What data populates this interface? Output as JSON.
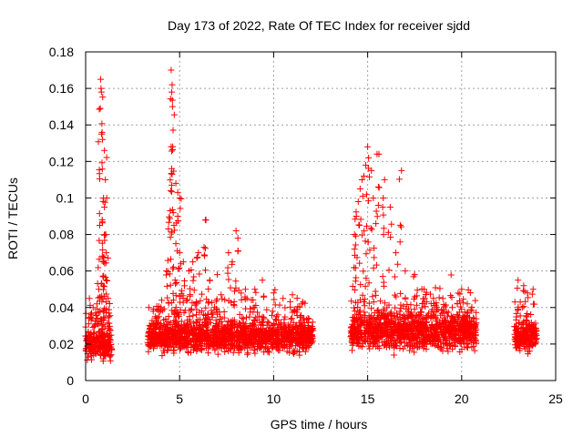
{
  "chart_data": {
    "type": "scatter",
    "title": "Day 173 of 2022, Rate Of TEC Index for receiver sjdd",
    "xlabel": "GPS time / hours",
    "ylabel": "ROTI / TECUs",
    "xlim": [
      0,
      25
    ],
    "ylim": [
      0,
      0.18
    ],
    "xticks": [
      0,
      5,
      10,
      15,
      20,
      25
    ],
    "yticks": [
      0,
      0.02,
      0.04,
      0.06,
      0.08,
      0.1,
      0.12,
      0.14,
      0.16,
      0.18
    ],
    "xtick_labels": [
      "0",
      "5",
      "10",
      "15",
      "20",
      "25"
    ],
    "ytick_labels": [
      "0",
      "0.02",
      "0.04",
      "0.06",
      "0.08",
      "0.1",
      "0.12",
      "0.14",
      "0.16",
      "0.18"
    ],
    "grid": true,
    "marker": "+",
    "color": "#ff0000",
    "series": [
      {
        "name": "ROTI",
        "segments": [
          {
            "x_range": [
              0.0,
              1.4
            ],
            "baseline": 0.02,
            "spread": 0.012
          },
          {
            "x_range": [
              3.3,
              12.1
            ],
            "baseline": 0.024,
            "spread": 0.012
          },
          {
            "x_range": [
              14.1,
              20.8
            ],
            "baseline": 0.027,
            "spread": 0.014
          },
          {
            "x_range": [
              22.8,
              24.0
            ],
            "baseline": 0.024,
            "spread": 0.011
          }
        ],
        "points": [
          [
            0.2,
            0.045
          ],
          [
            0.4,
            0.04
          ],
          [
            0.6,
            0.042
          ],
          [
            0.7,
            0.05
          ],
          [
            0.75,
            0.085
          ],
          [
            0.8,
            0.165
          ],
          [
            0.82,
            0.16
          ],
          [
            0.84,
            0.158
          ],
          [
            0.78,
            0.149
          ],
          [
            0.85,
            0.135
          ],
          [
            0.9,
            0.132
          ],
          [
            1.0,
            0.126
          ],
          [
            1.05,
            0.11
          ],
          [
            0.95,
            0.1
          ],
          [
            1.0,
            0.095
          ],
          [
            0.88,
            0.088
          ],
          [
            1.02,
            0.08
          ],
          [
            1.1,
            0.07
          ],
          [
            0.95,
            0.065
          ],
          [
            1.1,
            0.055
          ],
          [
            1.2,
            0.045
          ],
          [
            3.7,
            0.035
          ],
          [
            4.0,
            0.04
          ],
          [
            4.3,
            0.06
          ],
          [
            4.4,
            0.083
          ],
          [
            4.5,
            0.093
          ],
          [
            4.55,
            0.17
          ],
          [
            4.6,
            0.162
          ],
          [
            4.58,
            0.158
          ],
          [
            4.62,
            0.15
          ],
          [
            4.55,
            0.128
          ],
          [
            4.6,
            0.113
          ],
          [
            4.8,
            0.108
          ],
          [
            4.9,
            0.103
          ],
          [
            5.0,
            0.1
          ],
          [
            4.9,
            0.09
          ],
          [
            4.7,
            0.085
          ],
          [
            4.8,
            0.075
          ],
          [
            5.0,
            0.07
          ],
          [
            5.2,
            0.065
          ],
          [
            5.5,
            0.06
          ],
          [
            5.7,
            0.065
          ],
          [
            6.0,
            0.07
          ],
          [
            6.3,
            0.073
          ],
          [
            6.4,
            0.088
          ],
          [
            6.6,
            0.055
          ],
          [
            7.0,
            0.058
          ],
          [
            7.6,
            0.07
          ],
          [
            7.8,
            0.065
          ],
          [
            8.0,
            0.082
          ],
          [
            8.1,
            0.078
          ],
          [
            8.5,
            0.05
          ],
          [
            9.0,
            0.05
          ],
          [
            9.4,
            0.055
          ],
          [
            10.0,
            0.048
          ],
          [
            10.5,
            0.045
          ],
          [
            11.0,
            0.047
          ],
          [
            11.5,
            0.042
          ],
          [
            14.3,
            0.072
          ],
          [
            14.3,
            0.08
          ],
          [
            14.4,
            0.09
          ],
          [
            14.5,
            0.098
          ],
          [
            14.6,
            0.105
          ],
          [
            14.7,
            0.11
          ],
          [
            14.8,
            0.112
          ],
          [
            14.9,
            0.118
          ],
          [
            15.0,
            0.128
          ],
          [
            15.05,
            0.122
          ],
          [
            15.2,
            0.115
          ],
          [
            15.3,
            0.1
          ],
          [
            15.5,
            0.124
          ],
          [
            15.6,
            0.124
          ],
          [
            15.8,
            0.095
          ],
          [
            15.9,
            0.11
          ],
          [
            16.2,
            0.095
          ],
          [
            16.5,
            0.07
          ],
          [
            16.8,
            0.115
          ],
          [
            17.0,
            0.06
          ],
          [
            17.5,
            0.058
          ],
          [
            18.0,
            0.05
          ],
          [
            18.5,
            0.045
          ],
          [
            19.0,
            0.045
          ],
          [
            19.5,
            0.04
          ],
          [
            20.0,
            0.05
          ],
          [
            20.3,
            0.042
          ],
          [
            23.0,
            0.055
          ],
          [
            23.3,
            0.052
          ],
          [
            23.5,
            0.048
          ],
          [
            23.8,
            0.05
          ]
        ]
      }
    ]
  }
}
